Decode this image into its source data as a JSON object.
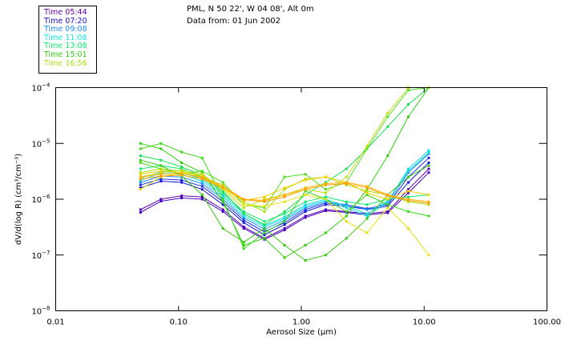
{
  "header": {
    "location_line": "PML, N 50 22', W 04 08', Alt 0m",
    "date_line": "Data from: 01 Jun 2002"
  },
  "legend": {
    "items": [
      {
        "label": "Time 05:44",
        "color": "#6a00a8"
      },
      {
        "label": "Time 07:20",
        "color": "#1010d0"
      },
      {
        "label": "Time 09:08",
        "color": "#1a8cff"
      },
      {
        "label": "Time 11:08",
        "color": "#10e8e8"
      },
      {
        "label": "Time 13:08",
        "color": "#10e870"
      },
      {
        "label": "Time 15:01",
        "color": "#30d010"
      },
      {
        "label": "Time 16:56",
        "color": "#a8e010"
      }
    ]
  },
  "chart_data": {
    "type": "line",
    "title": "PML, N 50 22', W 04 08', Alt 0m — Data from: 01 Jun 2002",
    "xlabel": "Aerosol Size (µm)",
    "ylabel": "dV/d(log R) (cm³/cm⁻³)",
    "xscale": "log",
    "yscale": "log",
    "xlim": [
      0.01,
      100
    ],
    "ylim": [
      1e-08,
      0.0001
    ],
    "x_ticks": [
      {
        "value": 0.01,
        "label": "0.01"
      },
      {
        "value": 0.1,
        "label": "0.10"
      },
      {
        "value": 1,
        "label": "1.00"
      },
      {
        "value": 10,
        "label": "10.00"
      },
      {
        "value": 100,
        "label": "100.00"
      }
    ],
    "y_ticks": [
      {
        "value": 0.0001,
        "base": "10",
        "exp": "-4"
      },
      {
        "value": 1e-05,
        "base": "10",
        "exp": "-5"
      },
      {
        "value": 1e-06,
        "base": "10",
        "exp": "-6"
      },
      {
        "value": 1e-07,
        "base": "10",
        "exp": "-7"
      },
      {
        "value": 1e-08,
        "base": "10",
        "exp": "-8"
      }
    ],
    "grid": false,
    "legend_position": "top-left",
    "x": [
      0.049,
      0.072,
      0.106,
      0.156,
      0.23,
      0.34,
      0.5,
      0.73,
      1.08,
      1.58,
      2.33,
      3.43,
      5.05,
      7.43,
      10.9
    ],
    "series": [
      {
        "name": "Time 05:44",
        "color": "#5a00b0",
        "values": [
          6.5e-07,
          1e-06,
          1.15e-06,
          1.1e-06,
          6.5e-07,
          3.2e-07,
          2e-07,
          3e-07,
          5e-07,
          6.5e-07,
          6e-07,
          5.5e-07,
          6e-07,
          1.5e-06,
          3.5e-06
        ]
      },
      {
        "name": "Time 05:44",
        "color": "#4a00c0",
        "values": [
          5.8e-07,
          9.2e-07,
          1.05e-06,
          1e-06,
          6e-07,
          3e-07,
          1.9e-07,
          2.8e-07,
          4.7e-07,
          6.2e-07,
          5.8e-07,
          5.2e-07,
          5.7e-07,
          1.3e-06,
          3e-06
        ]
      },
      {
        "name": "Time 07:20",
        "color": "#1818d8",
        "values": [
          1.6e-06,
          2.1e-06,
          2e-06,
          1.5e-06,
          8e-07,
          3.8e-07,
          2.3e-07,
          3.5e-07,
          6e-07,
          8e-07,
          7.5e-07,
          6.5e-07,
          7.5e-07,
          2e-06,
          4.5e-06
        ]
      },
      {
        "name": "Time 07:20",
        "color": "#2030e0",
        "values": [
          1.8e-06,
          2.3e-06,
          2.2e-06,
          1.7e-06,
          9e-07,
          4.2e-07,
          2.6e-07,
          3.8e-07,
          6.5e-07,
          8.5e-07,
          8e-07,
          6.8e-07,
          8e-07,
          2.5e-06,
          5.5e-06
        ]
      },
      {
        "name": "Time 09:08",
        "color": "#1a8cff",
        "values": [
          2e-06,
          2.6e-06,
          2.5e-06,
          1.9e-06,
          1e-06,
          4.6e-07,
          2.9e-07,
          4.2e-07,
          7e-07,
          9e-07,
          8e-07,
          6.5e-07,
          8.5e-07,
          3e-06,
          6.5e-06
        ]
      },
      {
        "name": "Time 11:08",
        "color": "#10e0e8",
        "values": [
          2.2e-06,
          2.9e-06,
          2.8e-06,
          2.1e-06,
          1.1e-06,
          5e-07,
          3.2e-07,
          4.5e-07,
          7.5e-07,
          9.5e-07,
          7e-07,
          5e-07,
          9e-07,
          3.5e-06,
          7.5e-06
        ]
      },
      {
        "name": "Time 11:08",
        "color": "#20d8d0",
        "values": [
          2.4e-06,
          3.1e-06,
          3e-06,
          2.3e-06,
          1.2e-06,
          5.5e-07,
          3.4e-07,
          4.8e-07,
          8e-07,
          1e-06,
          7.5e-07,
          5.5e-07,
          9.5e-07,
          3.2e-06,
          6.8e-06
        ]
      },
      {
        "name": "Time 13:08",
        "color": "#10e870",
        "values": [
          3.5e-06,
          4e-06,
          3.5e-06,
          2.5e-06,
          1.3e-06,
          6e-07,
          4e-07,
          5.5e-07,
          9e-07,
          1.1e-06,
          9e-07,
          8e-07,
          1e-06,
          1.1e-06,
          1.2e-06
        ]
      },
      {
        "name": "Time 13:08",
        "color": "#18e050",
        "values": [
          6e-06,
          5e-06,
          3.8e-06,
          2.7e-06,
          1.4e-06,
          5.5e-07,
          3.5e-07,
          6e-07,
          1.2e-06,
          2e-06,
          3.5e-06,
          8e-06,
          2e-05,
          5e-05,
          0.00011
        ]
      },
      {
        "name": "Time 15:01",
        "color": "#30d010",
        "values": [
          1e-05,
          8e-06,
          4.5e-06,
          3e-06,
          9e-07,
          1.5e-07,
          2e-07,
          9e-08,
          1.5e-07,
          2.5e-07,
          5e-07,
          1.5e-06,
          6e-06,
          3e-05,
          0.0001
        ]
      },
      {
        "name": "Time 15:01",
        "color": "#40d818",
        "values": [
          8e-06,
          1e-05,
          7e-06,
          5.5e-06,
          1e-06,
          1.3e-07,
          2.5e-07,
          4e-07,
          1.4e-06,
          1e-06,
          6e-07,
          1.2e-06,
          8e-07,
          6e-07,
          5e-07
        ]
      },
      {
        "name": "Time 15:01",
        "color": "#50e020",
        "values": [
          4.5e-06,
          3.5e-06,
          2.8e-06,
          3.2e-06,
          2e-06,
          8e-07,
          7e-07,
          2.5e-06,
          2.8e-06,
          1.5e-06,
          2e-06,
          8e-06,
          3e-05,
          9e-05,
          0.0001
        ]
      },
      {
        "name": "Time 15:01",
        "color": "#38c810",
        "values": [
          5e-06,
          4e-06,
          2.6e-06,
          1.2e-06,
          3e-07,
          1.7e-07,
          3e-07,
          1.5e-07,
          8e-08,
          1e-07,
          2e-07,
          4.5e-07,
          1.2e-06,
          2.5e-06,
          4e-06
        ]
      },
      {
        "name": "Time 16:56",
        "color": "#a8e010",
        "values": [
          3e-06,
          3.5e-06,
          3.2e-06,
          2.5e-06,
          1.8e-06,
          9e-07,
          6e-07,
          1.5e-06,
          2.3e-06,
          2.5e-06,
          1.8e-06,
          1.4e-06,
          1.2e-06,
          9e-07,
          8e-07
        ]
      },
      {
        "name": "Time 16:56",
        "color": "#c0e010",
        "values": [
          2.5e-06,
          3e-06,
          3.3e-06,
          2.8e-06,
          1.5e-06,
          7e-07,
          1e-06,
          1.2e-06,
          1.5e-06,
          1.3e-06,
          2.5e-06,
          9e-06,
          3.5e-05,
          0.0001,
          0.0001
        ]
      },
      {
        "name": "Time 16:56",
        "color": "#e8e010",
        "values": [
          1.5e-06,
          2.5e-06,
          3e-06,
          2.7e-06,
          1.6e-06,
          8e-07,
          7.5e-07,
          9e-07,
          1.2e-06,
          1e-06,
          4e-07,
          2.5e-07,
          7e-07,
          3e-07,
          1e-07
        ]
      },
      {
        "name": "Time 16:56",
        "color": "#f8d000",
        "values": [
          2.8e-06,
          3.2e-06,
          3e-06,
          2.4e-06,
          1.6e-06,
          9.5e-07,
          1.1e-06,
          1.6e-06,
          2.2e-06,
          2.5e-06,
          2e-06,
          1.3e-06,
          1e-06,
          1.4e-06,
          1.2e-06
        ]
      },
      {
        "name": "Time 16:56",
        "color": "#ffb000",
        "values": [
          2.5e-06,
          2.8e-06,
          2.9e-06,
          2.5e-06,
          1.7e-06,
          1e-06,
          9.5e-07,
          1.2e-06,
          1.6e-06,
          1.9e-06,
          2e-06,
          1.7e-06,
          1.2e-06,
          1e-06,
          9e-07
        ]
      },
      {
        "name": "Time 16:56",
        "color": "#ffa000",
        "values": [
          2.3e-06,
          2.6e-06,
          2.7e-06,
          2.3e-06,
          1.6e-06,
          9.8e-07,
          9e-07,
          1.1e-06,
          1.5e-06,
          1.8e-06,
          1.9e-06,
          1.6e-06,
          1.15e-06,
          9.5e-07,
          8.5e-07
        ]
      }
    ]
  }
}
